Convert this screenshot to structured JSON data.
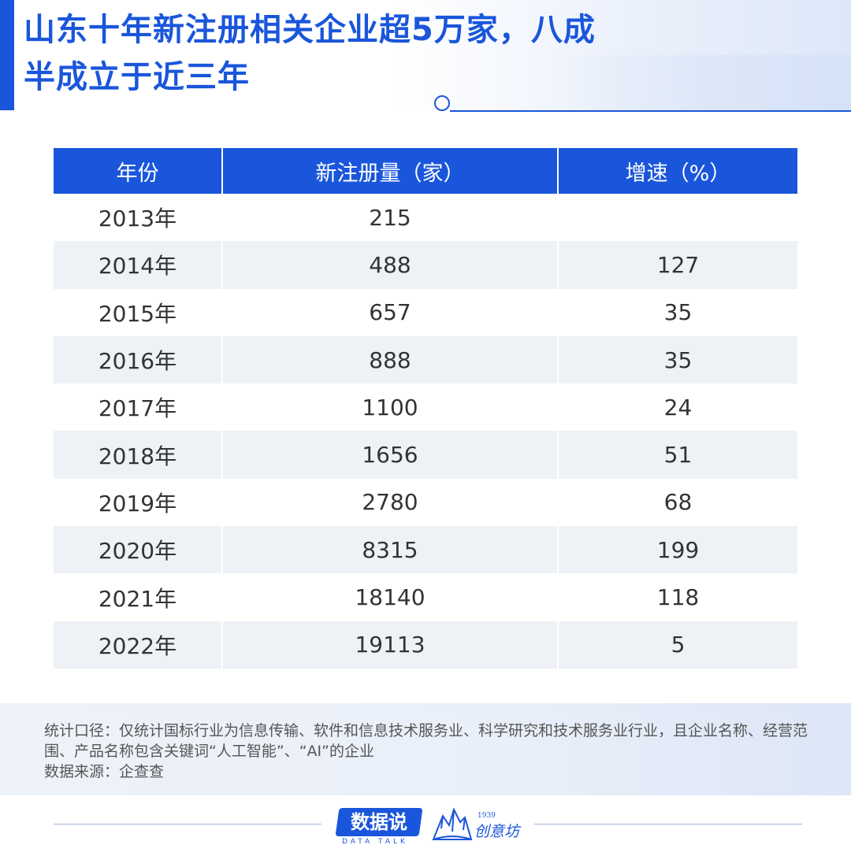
{
  "title": "山东十年新注册相关企业超5万家，八成半成立于近三年",
  "table": {
    "headers": [
      "年份",
      "新注册量（家）",
      "增速（%）"
    ],
    "rows": [
      {
        "year": "2013年",
        "count": "215",
        "growth": ""
      },
      {
        "year": "2014年",
        "count": "488",
        "growth": "127"
      },
      {
        "year": "2015年",
        "count": "657",
        "growth": "35"
      },
      {
        "year": "2016年",
        "count": "888",
        "growth": "35"
      },
      {
        "year": "2017年",
        "count": "1100",
        "growth": "24"
      },
      {
        "year": "2018年",
        "count": "1656",
        "growth": "51"
      },
      {
        "year": "2019年",
        "count": "2780",
        "growth": "68"
      },
      {
        "year": "2020年",
        "count": "8315",
        "growth": "199"
      },
      {
        "year": "2021年",
        "count": "18140",
        "growth": "118"
      },
      {
        "year": "2022年",
        "count": "19113",
        "growth": "5"
      }
    ]
  },
  "footnote": {
    "scope": "统计口径：仅统计国标行业为信息传输、软件和信息技术服务业、科学研究和技术服务业行业，且企业名称、经营范围、产品名称包含关键词“人工智能”、“AI”的企业",
    "source": "数据来源：企查查"
  },
  "logos": {
    "data_talk_cn": "数据说",
    "data_talk_en": "DATA TALK",
    "chuangyi_year": "1939",
    "chuangyi_name": "创意坊"
  },
  "colors": {
    "accent": "#1a56db",
    "row_alt": "#eef1f5",
    "text": "#333333"
  }
}
